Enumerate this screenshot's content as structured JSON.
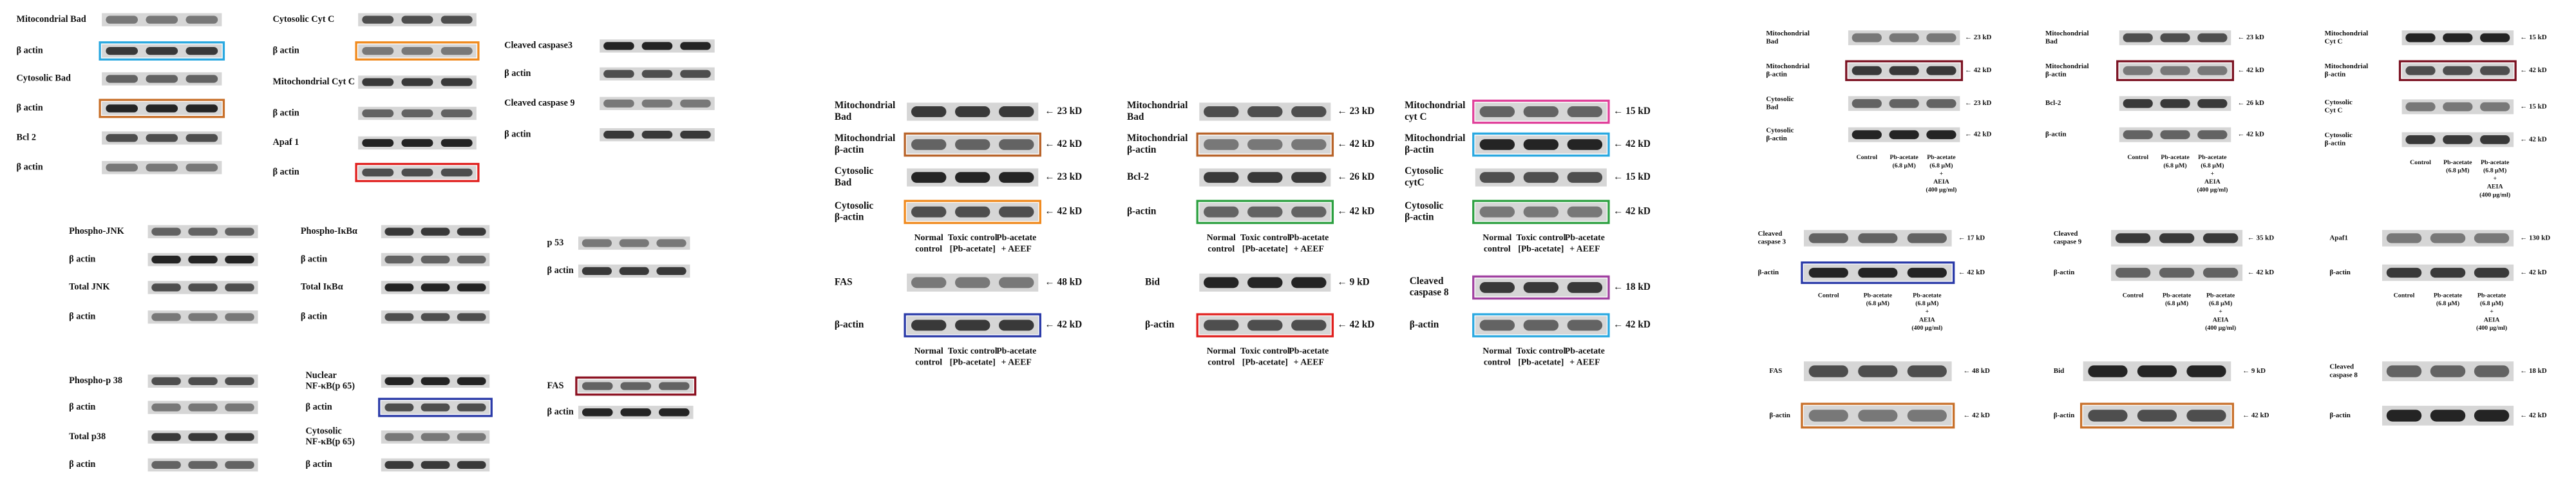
{
  "panels": [
    {
      "rows": [
        {
          "label": [
            "Mitocondrial  Bad"
          ]
        },
        {
          "label": [
            "β actin"
          ]
        },
        {
          "label": [
            "Cytosolic Bad"
          ]
        },
        {
          "label": [
            "β actin"
          ]
        },
        {
          "label": [
            "Bcl 2"
          ]
        },
        {
          "label": [
            "β actin"
          ]
        }
      ]
    },
    {
      "rows": [
        {
          "label": [
            "Cytosolic  Cyt C"
          ]
        },
        {
          "label": [
            "β actin"
          ]
        },
        {
          "label": [
            "Mitochondrial Cyt C"
          ]
        },
        {
          "label": [
            "β actin"
          ]
        },
        {
          "label": [
            "Apaf 1"
          ]
        },
        {
          "label": [
            "β actin"
          ]
        }
      ]
    },
    {
      "rows": [
        {
          "label": [
            "Cleaved caspase3"
          ]
        },
        {
          "label": [
            "β actin"
          ]
        },
        {
          "label": [
            "Cleaved caspase 9"
          ]
        },
        {
          "label": [
            "β actin"
          ]
        }
      ]
    },
    {
      "rows": [
        {
          "label": [
            "Phospho-JNK"
          ]
        },
        {
          "label": [
            "β actin"
          ]
        },
        {
          "label": [
            "Total JNK"
          ]
        },
        {
          "label": [
            "β actin"
          ]
        }
      ]
    },
    {
      "rows": [
        {
          "label": [
            "Phospho-IκBα"
          ]
        },
        {
          "label": [
            "β actin"
          ]
        },
        {
          "label": [
            "Total IκBα"
          ]
        },
        {
          "label": [
            "β actin"
          ]
        }
      ]
    },
    {
      "rows": [
        {
          "label": [
            "p 53"
          ]
        },
        {
          "label": [
            "β actin"
          ]
        }
      ]
    },
    {
      "rows": [
        {
          "label": [
            "Phospho-p 38"
          ]
        },
        {
          "label": [
            "β actin"
          ]
        },
        {
          "label": [
            "Total p38"
          ]
        },
        {
          "label": [
            "β actin"
          ]
        }
      ]
    },
    {
      "rows": [
        {
          "label": [
            "Nuclear",
            "NF-κB(p 65)"
          ]
        },
        {
          "label": [
            "β actin"
          ]
        },
        {
          "label": [
            "Cytosolic",
            "NF-κB(p 65)"
          ]
        },
        {
          "label": [
            "β actin"
          ]
        }
      ]
    },
    {
      "rows": [
        {
          "label": [
            "FAS"
          ]
        },
        {
          "label": [
            "β actin"
          ]
        }
      ]
    },
    {
      "rows": [
        {
          "label": [
            "Mitochondrial",
            "Bad"
          ],
          "kd": "← 23 kD"
        },
        {
          "label": [
            "Mitochondrial",
            "β-actin"
          ],
          "kd": "← 42 kD"
        },
        {
          "label": [
            "Cytosolic",
            "Bad"
          ],
          "kd": "← 23 kD"
        },
        {
          "label": [
            "Cytosolic",
            "β-actin"
          ],
          "kd": "← 42 kD"
        }
      ],
      "lanes": [
        [
          "Normal",
          "control"
        ],
        [
          "Toxic control",
          "[Pb-acetate]"
        ],
        [
          "Pb-acetate",
          "+ AEEF"
        ]
      ]
    },
    {
      "rows": [
        {
          "label": [
            "FAS"
          ],
          "kd": "← 48 kD"
        },
        {
          "label": [
            "β-actin"
          ],
          "kd": "← 42 kD"
        }
      ],
      "lanes": [
        [
          "Normal",
          "control"
        ],
        [
          "Toxic control",
          "[Pb-acetate]"
        ],
        [
          "Pb-acetate",
          "+ AEEF"
        ]
      ]
    },
    {
      "rows": [
        {
          "label": [
            "Mitochondrial",
            "Bad"
          ],
          "kd": "← 23 kD"
        },
        {
          "label": [
            "Mitochondrial",
            "β-actin"
          ],
          "kd": "← 42 kD"
        },
        {
          "label": [
            "Bcl-2"
          ],
          "kd": "← 26 kD"
        },
        {
          "label": [
            "β-actin"
          ],
          "kd": "← 42 kD"
        }
      ],
      "lanes": [
        [
          "Normal",
          "control"
        ],
        [
          "Toxic control",
          "[Pb-acetate]"
        ],
        [
          "Pb-acetate",
          "+ AEEF"
        ]
      ]
    },
    {
      "rows": [
        {
          "label": [
            "Bid"
          ],
          "kd": "← 9 kD"
        },
        {
          "label": [
            "β-actin"
          ],
          "kd": "← 42 kD"
        }
      ],
      "lanes": [
        [
          "Normal",
          "control"
        ],
        [
          "Toxic control",
          "[Pb-acetate]"
        ],
        [
          "Pb-acetate",
          "+ AEEF"
        ]
      ]
    },
    {
      "rows": [
        {
          "label": [
            "Mitochondrial",
            "cyt C"
          ],
          "kd": "← 15 kD"
        },
        {
          "label": [
            "Mitochondrial",
            "β-actin"
          ],
          "kd": "← 42 kD"
        },
        {
          "label": [
            "Cytosolic",
            "cytC"
          ],
          "kd": "← 15 kD"
        },
        {
          "label": [
            "Cytosolic",
            "β-actin"
          ],
          "kd": "← 42 kD"
        }
      ],
      "lanes": [
        [
          "Normal",
          "control"
        ],
        [
          "Toxic control",
          "[Pb-acetate]"
        ],
        [
          "Pb-acetate",
          "+ AEEF"
        ]
      ]
    },
    {
      "rows": [
        {
          "label": [
            "Cleaved",
            "caspase 8"
          ],
          "kd": "← 18 kD"
        },
        {
          "label": [
            "β-actin"
          ],
          "kd": "← 42 kD"
        }
      ],
      "lanes": [
        [
          "Normal",
          "control"
        ],
        [
          "Toxic control",
          "[Pb-acetate]"
        ],
        [
          "Pb-acetate",
          "+ AEEF"
        ]
      ]
    },
    {
      "rows": [
        {
          "label": [
            "Mitochondrial",
            "Bad"
          ],
          "kd": "← 23 kD"
        },
        {
          "label": [
            "Mitochondrial",
            "β-actin"
          ],
          "kd": "← 42 kD"
        },
        {
          "label": [
            "Cytosolic",
            "Bad"
          ],
          "kd": "← 23 kD"
        },
        {
          "label": [
            "Cytosolic",
            "β-actin"
          ],
          "kd": "← 42 kD"
        }
      ],
      "lanes": [
        [
          "Control"
        ],
        [
          "Pb-acetate",
          "(6.8 μM)"
        ],
        [
          "Pb-acetate",
          "(6.8 μM)",
          "+",
          "AEIA",
          "(400 μg/ml)"
        ]
      ]
    },
    {
      "rows": [
        {
          "label": [
            "Mitochondrial",
            "Bad"
          ],
          "kd": "← 23 kD"
        },
        {
          "label": [
            "Mitochondrial",
            "β-actin"
          ],
          "kd": "← 42 kD"
        },
        {
          "label": [
            "Bcl-2"
          ],
          "kd": "← 26 kD"
        },
        {
          "label": [
            "β-actin"
          ],
          "kd": "← 42 kD"
        }
      ],
      "lanes": [
        [
          "Control"
        ],
        [
          "Pb-acetate",
          "(6.8 μM)"
        ],
        [
          "Pb-acetate",
          "(6.8 μM)",
          "+",
          "AEIA",
          "(400 μg/ml)"
        ]
      ]
    },
    {
      "rows": [
        {
          "label": [
            "Mitochondrial",
            "Cyt C"
          ],
          "kd": "← 15 kD"
        },
        {
          "label": [
            "Mitochondrial",
            "β-actin"
          ],
          "kd": "← 42 kD"
        },
        {
          "label": [
            "Cytosolic",
            "Cyt C"
          ],
          "kd": "← 15 kD"
        },
        {
          "label": [
            "Cytosolic",
            "β-actin"
          ],
          "kd": "← 42 kD"
        }
      ],
      "lanes": [
        [
          "Control"
        ],
        [
          "Pb-acetate",
          "(6.8 μM)"
        ],
        [
          "Pb-acetate",
          "(6.8 μM)",
          "+",
          "AEIA",
          "(400 μg/ml)"
        ]
      ]
    },
    {
      "rows": [
        {
          "label": [
            "Cleaved",
            "caspase 3"
          ],
          "kd": "← 17 kD"
        },
        {
          "label": [
            "β-actin"
          ],
          "kd": "← 42 kD"
        }
      ],
      "lanes": [
        [
          "Control"
        ],
        [
          "Pb-acetate",
          "(6.8 μM)"
        ],
        [
          "Pb-acetate",
          "(6.8 μM)",
          "+",
          "AEIA",
          "(400 μg/ml)"
        ]
      ]
    },
    {
      "rows": [
        {
          "label": [
            "Cleaved",
            "caspase 9"
          ],
          "kd": "← 35 kD"
        },
        {
          "label": [
            "β-actin"
          ],
          "kd": "← 42 kD"
        }
      ],
      "lanes": [
        [
          "Control"
        ],
        [
          "Pb-acetate",
          "(6.8 μM)"
        ],
        [
          "Pb-acetate",
          "(6.8 μM)",
          "+",
          "AEIA",
          "(400 μg/ml)"
        ]
      ]
    },
    {
      "rows": [
        {
          "label": [
            "Apaf1"
          ],
          "kd": "← 130 kD"
        },
        {
          "label": [
            "β-actin"
          ],
          "kd": "← 42 kD"
        }
      ],
      "lanes": [
        [
          "Control"
        ],
        [
          "Pb-acetate",
          "(6.8 μM)"
        ],
        [
          "Pb-acetate",
          "(6.8 μM)",
          "+",
          "AEIA",
          "(400 μg/ml)"
        ]
      ]
    },
    {
      "rows": [
        {
          "label": [
            "FAS"
          ],
          "kd": "← 48 kD"
        },
        {
          "label": [
            "β-actin"
          ],
          "kd": "← 42 kD"
        }
      ]
    },
    {
      "rows": [
        {
          "label": [
            "Bid"
          ],
          "kd": "← 9 kD"
        },
        {
          "label": [
            "β-actin"
          ],
          "kd": "← 42 kD"
        }
      ]
    },
    {
      "rows": [
        {
          "label": [
            "Cleaved",
            "caspase 8"
          ],
          "kd": "← 18 kD"
        },
        {
          "label": [
            "β-actin"
          ],
          "kd": "← 42 kD"
        }
      ]
    }
  ]
}
